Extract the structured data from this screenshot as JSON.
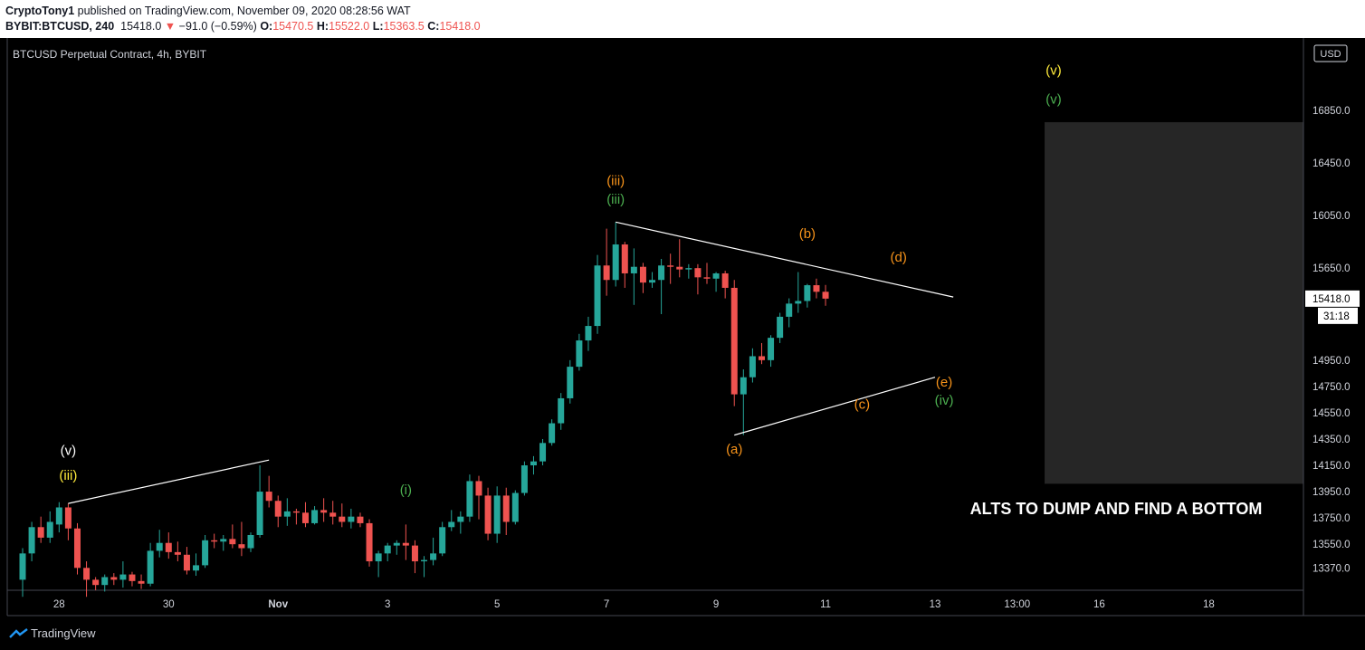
{
  "header": {
    "author": "CryptoTony1",
    "published_text": " published on TradingView.com, November 09, 2020 08:28:56 WAT",
    "symbol": "BYBIT:BTCUSD, 240",
    "last": "15418.0",
    "change": "−91.0 (−0.59%)",
    "o_label": "O:",
    "o": "15470.5",
    "h_label": "H:",
    "h": "15522.0",
    "l_label": "L:",
    "l": "15363.5",
    "c_label": "C:",
    "c": "15418.0"
  },
  "footer": {
    "brand": "TradingView"
  },
  "colors": {
    "up": "#26a69a",
    "down": "#ef5350",
    "orange": "#f7931a",
    "yellow": "#ffeb3b",
    "green": "#4caf50",
    "white": "#ffffff",
    "box": "#262626"
  },
  "chart_data": {
    "type": "candlestick",
    "title": "BTCUSD Perpetual Contract, 4h, BYBIT",
    "currency": "USD",
    "last_price_label": "15418.0",
    "countdown_label": "31:18",
    "x_ticks": [
      "28",
      "30",
      "Nov",
      "3",
      "5",
      "7",
      "9",
      "11",
      "13",
      "13:00",
      "16",
      "18"
    ],
    "y_ticks": [
      "13370.0",
      "13550.0",
      "13750.0",
      "13950.0",
      "14150.0",
      "14350.0",
      "14550.0",
      "14750.0",
      "14950.0",
      "15418.0",
      "15650.0",
      "16050.0",
      "16450.0",
      "16850.0"
    ],
    "y_range": [
      13200,
      17400
    ],
    "candles": [
      {
        "o": 13280,
        "h": 13520,
        "l": 13150,
        "c": 13480
      },
      {
        "o": 13480,
        "h": 13720,
        "l": 13420,
        "c": 13680
      },
      {
        "o": 13680,
        "h": 13760,
        "l": 13560,
        "c": 13600
      },
      {
        "o": 13600,
        "h": 13800,
        "l": 13560,
        "c": 13720
      },
      {
        "o": 13700,
        "h": 13870,
        "l": 13640,
        "c": 13830
      },
      {
        "o": 13830,
        "h": 13860,
        "l": 13580,
        "c": 13670
      },
      {
        "o": 13670,
        "h": 13710,
        "l": 13320,
        "c": 13370
      },
      {
        "o": 13370,
        "h": 13420,
        "l": 13150,
        "c": 13280
      },
      {
        "o": 13280,
        "h": 13300,
        "l": 13200,
        "c": 13240
      },
      {
        "o": 13240,
        "h": 13320,
        "l": 13190,
        "c": 13300
      },
      {
        "o": 13300,
        "h": 13330,
        "l": 13240,
        "c": 13280
      },
      {
        "o": 13280,
        "h": 13420,
        "l": 13220,
        "c": 13320
      },
      {
        "o": 13320,
        "h": 13340,
        "l": 13230,
        "c": 13270
      },
      {
        "o": 13270,
        "h": 13320,
        "l": 13210,
        "c": 13250
      },
      {
        "o": 13250,
        "h": 13560,
        "l": 13230,
        "c": 13500
      },
      {
        "o": 13500,
        "h": 13660,
        "l": 13450,
        "c": 13560
      },
      {
        "o": 13560,
        "h": 13640,
        "l": 13440,
        "c": 13490
      },
      {
        "o": 13490,
        "h": 13570,
        "l": 13420,
        "c": 13470
      },
      {
        "o": 13470,
        "h": 13530,
        "l": 13320,
        "c": 13350
      },
      {
        "o": 13350,
        "h": 13480,
        "l": 13310,
        "c": 13390
      },
      {
        "o": 13390,
        "h": 13620,
        "l": 13370,
        "c": 13580
      },
      {
        "o": 13580,
        "h": 13630,
        "l": 13520,
        "c": 13570
      },
      {
        "o": 13570,
        "h": 13620,
        "l": 13500,
        "c": 13590
      },
      {
        "o": 13590,
        "h": 13700,
        "l": 13520,
        "c": 13550
      },
      {
        "o": 13550,
        "h": 13720,
        "l": 13460,
        "c": 13520
      },
      {
        "o": 13520,
        "h": 13640,
        "l": 13490,
        "c": 13620
      },
      {
        "o": 13620,
        "h": 14150,
        "l": 13600,
        "c": 13950
      },
      {
        "o": 13950,
        "h": 14070,
        "l": 13830,
        "c": 13880
      },
      {
        "o": 13880,
        "h": 13920,
        "l": 13680,
        "c": 13760
      },
      {
        "o": 13760,
        "h": 13900,
        "l": 13690,
        "c": 13800
      },
      {
        "o": 13800,
        "h": 13820,
        "l": 13700,
        "c": 13790
      },
      {
        "o": 13790,
        "h": 13870,
        "l": 13680,
        "c": 13710
      },
      {
        "o": 13710,
        "h": 13840,
        "l": 13700,
        "c": 13810
      },
      {
        "o": 13810,
        "h": 13900,
        "l": 13720,
        "c": 13790
      },
      {
        "o": 13790,
        "h": 13880,
        "l": 13700,
        "c": 13760
      },
      {
        "o": 13760,
        "h": 13860,
        "l": 13680,
        "c": 13720
      },
      {
        "o": 13720,
        "h": 13820,
        "l": 13670,
        "c": 13760
      },
      {
        "o": 13760,
        "h": 13790,
        "l": 13680,
        "c": 13710
      },
      {
        "o": 13710,
        "h": 13740,
        "l": 13380,
        "c": 13420
      },
      {
        "o": 13420,
        "h": 13500,
        "l": 13300,
        "c": 13480
      },
      {
        "o": 13480,
        "h": 13560,
        "l": 13420,
        "c": 13540
      },
      {
        "o": 13540,
        "h": 13580,
        "l": 13470,
        "c": 13560
      },
      {
        "o": 13560,
        "h": 13700,
        "l": 13430,
        "c": 13540
      },
      {
        "o": 13540,
        "h": 13580,
        "l": 13330,
        "c": 13420
      },
      {
        "o": 13420,
        "h": 13460,
        "l": 13300,
        "c": 13430
      },
      {
        "o": 13430,
        "h": 13600,
        "l": 13390,
        "c": 13480
      },
      {
        "o": 13480,
        "h": 13720,
        "l": 13460,
        "c": 13680
      },
      {
        "o": 13680,
        "h": 13810,
        "l": 13650,
        "c": 13720
      },
      {
        "o": 13720,
        "h": 13800,
        "l": 13630,
        "c": 13760
      },
      {
        "o": 13760,
        "h": 14080,
        "l": 13720,
        "c": 14030
      },
      {
        "o": 14030,
        "h": 14070,
        "l": 13740,
        "c": 13920
      },
      {
        "o": 13920,
        "h": 13980,
        "l": 13580,
        "c": 13630
      },
      {
        "o": 13630,
        "h": 13990,
        "l": 13560,
        "c": 13920
      },
      {
        "o": 13920,
        "h": 13980,
        "l": 13620,
        "c": 13720
      },
      {
        "o": 13720,
        "h": 13960,
        "l": 13700,
        "c": 13940
      },
      {
        "o": 13940,
        "h": 14180,
        "l": 13920,
        "c": 14150
      },
      {
        "o": 14150,
        "h": 14220,
        "l": 14080,
        "c": 14180
      },
      {
        "o": 14180,
        "h": 14350,
        "l": 14150,
        "c": 14320
      },
      {
        "o": 14320,
        "h": 14500,
        "l": 14300,
        "c": 14470
      },
      {
        "o": 14470,
        "h": 14700,
        "l": 14420,
        "c": 14660
      },
      {
        "o": 14660,
        "h": 14950,
        "l": 14620,
        "c": 14900
      },
      {
        "o": 14900,
        "h": 15150,
        "l": 14870,
        "c": 15100
      },
      {
        "o": 15100,
        "h": 15280,
        "l": 15020,
        "c": 15210
      },
      {
        "o": 15210,
        "h": 15750,
        "l": 15150,
        "c": 15670
      },
      {
        "o": 15670,
        "h": 15950,
        "l": 15440,
        "c": 15560
      },
      {
        "o": 15560,
        "h": 16000,
        "l": 15510,
        "c": 15830
      },
      {
        "o": 15830,
        "h": 15850,
        "l": 15500,
        "c": 15610
      },
      {
        "o": 15610,
        "h": 15800,
        "l": 15370,
        "c": 15660
      },
      {
        "o": 15660,
        "h": 15690,
        "l": 15460,
        "c": 15540
      },
      {
        "o": 15540,
        "h": 15620,
        "l": 15500,
        "c": 15560
      },
      {
        "o": 15560,
        "h": 15720,
        "l": 15300,
        "c": 15670
      },
      {
        "o": 15670,
        "h": 15760,
        "l": 15530,
        "c": 15660
      },
      {
        "o": 15660,
        "h": 15870,
        "l": 15580,
        "c": 15640
      },
      {
        "o": 15640,
        "h": 15680,
        "l": 15570,
        "c": 15650
      },
      {
        "o": 15650,
        "h": 15680,
        "l": 15450,
        "c": 15580
      },
      {
        "o": 15580,
        "h": 15690,
        "l": 15530,
        "c": 15570
      },
      {
        "o": 15570,
        "h": 15620,
        "l": 15470,
        "c": 15610
      },
      {
        "o": 15610,
        "h": 15630,
        "l": 15420,
        "c": 15500
      },
      {
        "o": 15500,
        "h": 15560,
        "l": 14600,
        "c": 14690
      },
      {
        "o": 14690,
        "h": 14880,
        "l": 14380,
        "c": 14820
      },
      {
        "o": 14820,
        "h": 15040,
        "l": 14780,
        "c": 14980
      },
      {
        "o": 14980,
        "h": 15080,
        "l": 14920,
        "c": 14950
      },
      {
        "o": 14950,
        "h": 15140,
        "l": 14900,
        "c": 15120
      },
      {
        "o": 15120,
        "h": 15310,
        "l": 15080,
        "c": 15280
      },
      {
        "o": 15280,
        "h": 15420,
        "l": 15200,
        "c": 15380
      },
      {
        "o": 15380,
        "h": 15620,
        "l": 15310,
        "c": 15400
      },
      {
        "o": 15400,
        "h": 15530,
        "l": 15350,
        "c": 15520
      },
      {
        "o": 15520,
        "h": 15570,
        "l": 15420,
        "c": 15470
      },
      {
        "o": 15470,
        "h": 15522,
        "l": 15363.5,
        "c": 15418
      }
    ],
    "trendlines": [
      {
        "from": [
          5,
          13860
        ],
        "to": [
          27,
          14190
        ]
      },
      {
        "from": [
          65,
          16000
        ],
        "to": [
          102,
          15430
        ]
      },
      {
        "from": [
          78,
          14380
        ],
        "to": [
          100,
          14820
        ]
      }
    ],
    "wave_labels": [
      {
        "text": "(v)",
        "color": "white",
        "i": 5,
        "price": 14230
      },
      {
        "text": "(iii)",
        "color": "yellow",
        "i": 5,
        "price": 14040
      },
      {
        "text": "(i)",
        "color": "green",
        "i": 42,
        "price": 13930
      },
      {
        "text": "(iii)",
        "color": "orange",
        "i": 65,
        "price": 16280
      },
      {
        "text": "(iii)",
        "color": "green",
        "i": 65,
        "price": 16140
      },
      {
        "text": "(b)",
        "color": "orange",
        "i": 86,
        "price": 15880
      },
      {
        "text": "(d)",
        "color": "orange",
        "i": 96,
        "price": 15700
      },
      {
        "text": "(a)",
        "color": "orange",
        "i": 78,
        "price": 14240
      },
      {
        "text": "(c)",
        "color": "orange",
        "i": 92,
        "price": 14580
      },
      {
        "text": "(e)",
        "color": "orange",
        "i": 101,
        "price": 14750
      },
      {
        "text": "(iv)",
        "color": "green",
        "i": 101,
        "price": 14610
      },
      {
        "text": "(v)",
        "color": "yellow",
        "i": 113,
        "price": 17120
      },
      {
        "text": "(v)",
        "color": "green",
        "i": 113,
        "price": 16900
      }
    ],
    "target_box": {
      "i_from": 113,
      "price_top": 16760,
      "price_bottom": 14010
    },
    "annotation": "ALTS TO DUMP AND FIND A BOTTOM"
  }
}
